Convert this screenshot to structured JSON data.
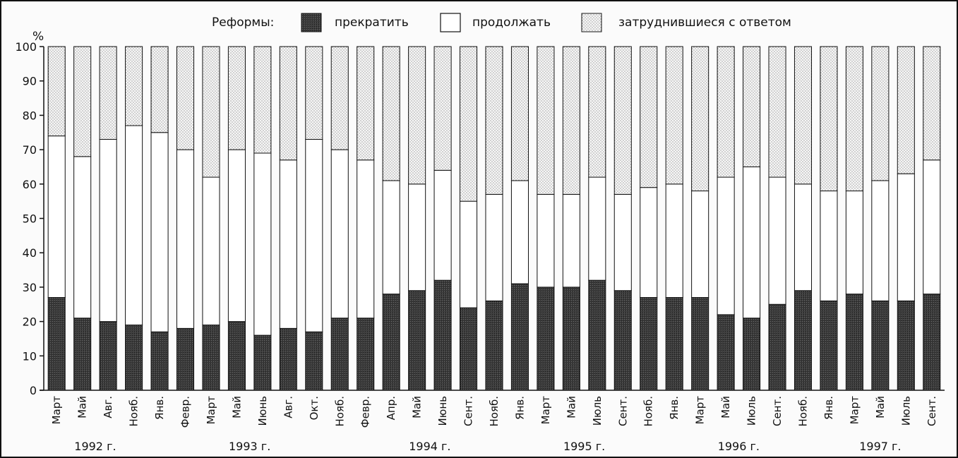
{
  "chart_data": {
    "type": "bar",
    "stacked": true,
    "legend_title": "Реформы:",
    "legend_position": "top",
    "ylabel": "%",
    "ylim": [
      0,
      100
    ],
    "yticks": [
      0,
      10,
      20,
      30,
      40,
      50,
      60,
      70,
      80,
      90,
      100
    ],
    "grid": false,
    "categories": [
      "Март",
      "Май",
      "Авг.",
      "Нояб.",
      "Янв.",
      "Февр.",
      "Март",
      "Май",
      "Июнь",
      "Авг.",
      "Окт.",
      "Нояб.",
      "Февр.",
      "Апр.",
      "Май",
      "Июнь",
      "Сент.",
      "Нояб.",
      "Янв.",
      "Март",
      "Май",
      "Июль",
      "Сент.",
      "Нояб.",
      "Янв.",
      "Март",
      "Май",
      "Июль",
      "Сент.",
      "Нояб.",
      "Янв.",
      "Март",
      "Май",
      "Июль",
      "Сент."
    ],
    "years": [
      {
        "label": "1992 г.",
        "first": 0,
        "last": 3
      },
      {
        "label": "1993 г.",
        "first": 4,
        "last": 11
      },
      {
        "label": "1994 г.",
        "first": 12,
        "last": 17
      },
      {
        "label": "1995 г.",
        "first": 18,
        "last": 23
      },
      {
        "label": "1996 г.",
        "first": 24,
        "last": 29
      },
      {
        "label": "1997 г.",
        "first": 30,
        "last": 34
      }
    ],
    "series": [
      {
        "name": "прекратить",
        "color": "#3a3a3a",
        "values": [
          27,
          21,
          20,
          19,
          17,
          18,
          19,
          20,
          16,
          18,
          17,
          21,
          21,
          28,
          29,
          32,
          24,
          26,
          31,
          30,
          30,
          32,
          29,
          27,
          27,
          27,
          22,
          21,
          25,
          29,
          26,
          28,
          26,
          26,
          28
        ]
      },
      {
        "name": "продолжать",
        "color": "#ffffff",
        "values": [
          47,
          47,
          53,
          58,
          58,
          52,
          43,
          50,
          53,
          49,
          56,
          49,
          46,
          33,
          31,
          32,
          31,
          31,
          30,
          27,
          27,
          30,
          28,
          32,
          33,
          31,
          40,
          44,
          37,
          31,
          32,
          30,
          35,
          37,
          39
        ]
      },
      {
        "name": "затруднившиеся с ответом",
        "color": "#f2f2f2",
        "values": [
          26,
          32,
          27,
          23,
          25,
          30,
          38,
          30,
          31,
          33,
          27,
          30,
          33,
          39,
          40,
          36,
          45,
          43,
          39,
          43,
          43,
          38,
          43,
          41,
          40,
          42,
          38,
          35,
          38,
          40,
          42,
          42,
          39,
          37,
          33
        ]
      }
    ]
  }
}
